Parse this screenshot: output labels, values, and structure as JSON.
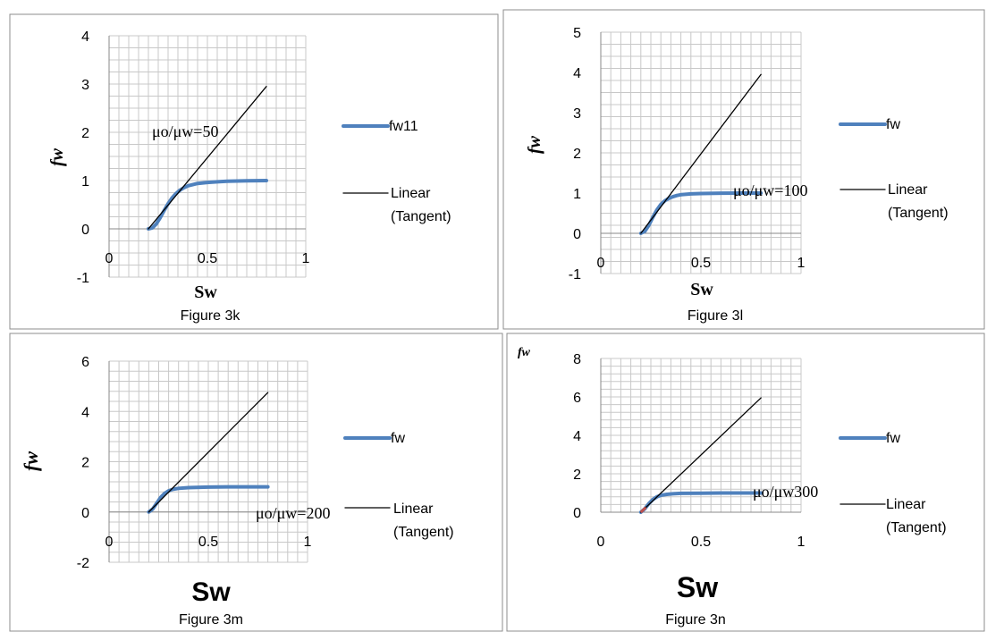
{
  "colors": {
    "fw_series": "#4f81bd",
    "tangent": "#000000",
    "grid": "#c8c8c8",
    "panel_border": "#8c8c8c",
    "tangent_start_3n": "#c0504d"
  },
  "chart_data": [
    {
      "type": "line",
      "caption": "Figure 3k",
      "xlabel": "Sw",
      "ylabel": "fw",
      "xlim": [
        0,
        1
      ],
      "ylim": [
        -1,
        4
      ],
      "x_ticks": [
        "0",
        "0.5",
        "1"
      ],
      "y_ticks": [
        "4",
        "3",
        "2",
        "1",
        "0",
        "-1"
      ],
      "grid": true,
      "legend_position": "right",
      "annotation": "μo/μw=50",
      "series": [
        {
          "name": "fw11",
          "style": "thick",
          "x": [
            0.2,
            0.22,
            0.24,
            0.26,
            0.28,
            0.3,
            0.32,
            0.34,
            0.36,
            0.38,
            0.4,
            0.45,
            0.5,
            0.55,
            0.6,
            0.7,
            0.8
          ],
          "y": [
            0,
            0.02,
            0.1,
            0.23,
            0.38,
            0.52,
            0.64,
            0.73,
            0.8,
            0.85,
            0.89,
            0.94,
            0.96,
            0.975,
            0.985,
            0.995,
            1.0
          ]
        },
        {
          "name": "Linear (Tangent)",
          "style": "thin",
          "x": [
            0.2,
            0.8
          ],
          "y": [
            0,
            2.95
          ]
        }
      ]
    },
    {
      "type": "line",
      "caption": "Figure 3l",
      "xlabel": "Sw",
      "ylabel": "fw",
      "xlim": [
        0,
        1
      ],
      "ylim": [
        -1,
        5
      ],
      "x_ticks": [
        "0",
        "0.5",
        "1"
      ],
      "y_ticks": [
        "5",
        "4",
        "3",
        "2",
        "1",
        "0",
        "-1"
      ],
      "grid": true,
      "legend_position": "right",
      "annotation": "μo/μw=100",
      "series": [
        {
          "name": "fw",
          "style": "thick",
          "x": [
            0.2,
            0.22,
            0.24,
            0.26,
            0.28,
            0.3,
            0.32,
            0.34,
            0.36,
            0.38,
            0.4,
            0.45,
            0.5,
            0.6,
            0.7,
            0.8
          ],
          "y": [
            0,
            0.05,
            0.2,
            0.4,
            0.58,
            0.72,
            0.81,
            0.87,
            0.91,
            0.94,
            0.96,
            0.98,
            0.99,
            0.997,
            1.0,
            1.0
          ]
        },
        {
          "name": "Linear (Tangent)",
          "style": "thin",
          "x": [
            0.2,
            0.8
          ],
          "y": [
            0,
            3.95
          ]
        }
      ]
    },
    {
      "type": "line",
      "caption": "Figure 3m",
      "xlabel": "Sw",
      "ylabel": "fw",
      "xlim": [
        0,
        1
      ],
      "ylim": [
        -2,
        6
      ],
      "x_ticks": [
        "0",
        "0.5",
        "1"
      ],
      "y_ticks": [
        "6",
        "4",
        "2",
        "0",
        "-2"
      ],
      "grid": true,
      "legend_position": "right",
      "annotation": "μo/μw=200",
      "series": [
        {
          "name": "fw",
          "style": "thick",
          "x": [
            0.2,
            0.22,
            0.24,
            0.26,
            0.28,
            0.3,
            0.32,
            0.35,
            0.4,
            0.5,
            0.6,
            0.7,
            0.8
          ],
          "y": [
            0,
            0.12,
            0.35,
            0.58,
            0.74,
            0.84,
            0.9,
            0.94,
            0.97,
            0.99,
            1.0,
            1.0,
            1.0
          ]
        },
        {
          "name": "Linear (Tangent)",
          "style": "thin",
          "x": [
            0.2,
            0.8
          ],
          "y": [
            0,
            4.75
          ]
        }
      ]
    },
    {
      "type": "line",
      "caption": "Figure 3n",
      "xlabel": "Sw",
      "ylabel": "fw",
      "xlim": [
        0,
        1
      ],
      "ylim": [
        0,
        8
      ],
      "x_ticks": [
        "0",
        "0.5",
        "1"
      ],
      "y_ticks": [
        "8",
        "6",
        "4",
        "2",
        "0"
      ],
      "grid": true,
      "legend_position": "right",
      "annotation": "μo/μw300",
      "series": [
        {
          "name": "fw",
          "style": "thick",
          "x": [
            0.2,
            0.22,
            0.24,
            0.26,
            0.28,
            0.3,
            0.33,
            0.36,
            0.4,
            0.5,
            0.6,
            0.7,
            0.8
          ],
          "y": [
            0,
            0.18,
            0.45,
            0.66,
            0.8,
            0.88,
            0.93,
            0.96,
            0.98,
            0.99,
            1.0,
            1.0,
            1.0
          ]
        },
        {
          "name": "Linear (Tangent)",
          "style": "thin",
          "x": [
            0.2,
            0.8
          ],
          "y": [
            0,
            5.95
          ]
        }
      ]
    }
  ]
}
